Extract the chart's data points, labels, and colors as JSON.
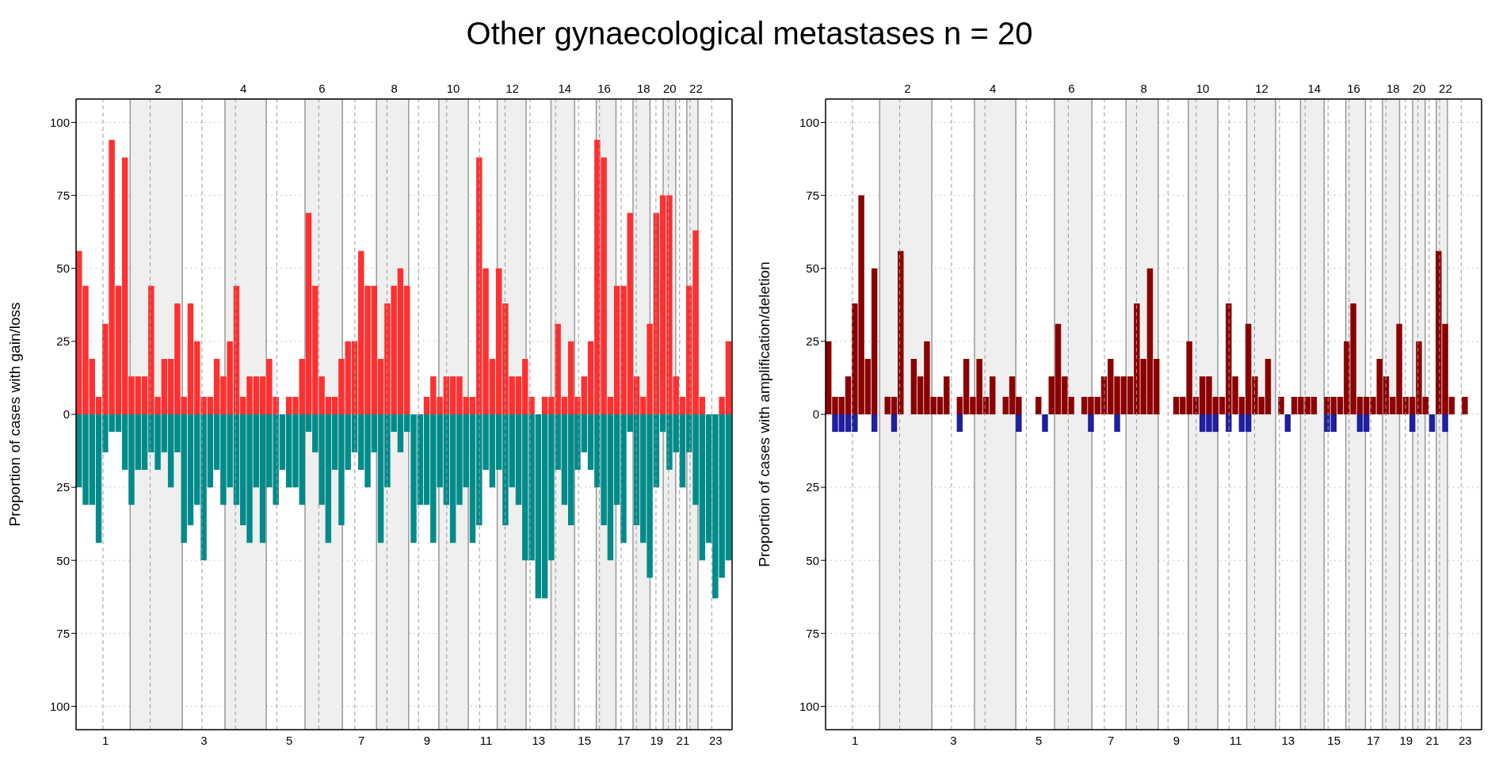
{
  "chart_data": [
    {
      "type": "bar",
      "title": "Other gynaecological metastases n = 20",
      "ylabel": "Proportion of cases with gain/loss",
      "stacked": true,
      "categories": [
        null,
        null,
        null,
        null,
        "1",
        null,
        null,
        null,
        null,
        null,
        null,
        null,
        "2",
        null,
        null,
        null,
        null,
        null,
        null,
        "3",
        null,
        null,
        null,
        null,
        null,
        "4",
        null,
        null,
        null,
        null,
        null,
        null,
        "5",
        null,
        null,
        null,
        null,
        "6",
        null,
        null,
        null,
        null,
        null,
        "7",
        null,
        null,
        null,
        null,
        "8",
        null,
        null,
        null,
        null,
        "9",
        null,
        null,
        null,
        "10",
        null,
        null,
        null,
        null,
        "11",
        null,
        null,
        null,
        "12",
        null,
        null,
        null,
        "13",
        null,
        null,
        null,
        "14",
        null,
        null,
        "15",
        null,
        null,
        "16",
        null,
        null,
        "17",
        null,
        null,
        "18",
        null,
        "19",
        null,
        "20",
        null,
        "21",
        null,
        "22",
        null,
        null,
        "23",
        null,
        null
      ],
      "series": [
        {
          "color": "#ff3030",
          "values": [
            56,
            44,
            19,
            6,
            31,
            94,
            44,
            88,
            13,
            13,
            13,
            44,
            6,
            19,
            19,
            38,
            6,
            38,
            25,
            6,
            6,
            19,
            13,
            25,
            44,
            6,
            13,
            13,
            13,
            19,
            6,
            0,
            6,
            6,
            19,
            69,
            44,
            13,
            6,
            6,
            19,
            25,
            25,
            56,
            44,
            44,
            19,
            38,
            44,
            50,
            44,
            0,
            0,
            6,
            13,
            6,
            13,
            13,
            13,
            6,
            6,
            88,
            50,
            19,
            50,
            38,
            13,
            13,
            19,
            6,
            0,
            6,
            6,
            31,
            6,
            25,
            6,
            13,
            25,
            94,
            88,
            6,
            44,
            44,
            69,
            13,
            6,
            31,
            69,
            75,
            75,
            13,
            6,
            44,
            63,
            6,
            0,
            0,
            6,
            25
          ]
        },
        {
          "color": "#008b8b",
          "values": [
            -25,
            -31,
            -31,
            -44,
            -13,
            -6,
            -6,
            -19,
            -31,
            -19,
            -19,
            -13,
            -19,
            -13,
            -25,
            -13,
            -44,
            -38,
            -31,
            -50,
            -25,
            -19,
            -31,
            -25,
            -31,
            -38,
            -44,
            -25,
            -44,
            -25,
            -31,
            -19,
            -25,
            -25,
            -31,
            -6,
            -13,
            -31,
            -44,
            -19,
            -38,
            -19,
            -13,
            -19,
            -25,
            -13,
            -44,
            -25,
            -6,
            -13,
            -6,
            -44,
            -31,
            -31,
            -44,
            -25,
            -31,
            -44,
            -31,
            -25,
            -44,
            -38,
            -19,
            -25,
            -19,
            -38,
            -25,
            -31,
            -50,
            -50,
            -63,
            -63,
            -50,
            -19,
            -31,
            -38,
            -19,
            -13,
            -19,
            -25,
            -38,
            -50,
            -31,
            -44,
            -6,
            -38,
            -44,
            -56,
            -25,
            -6,
            -19,
            -13,
            -25,
            -13,
            -31,
            -50,
            -44,
            -63,
            -56,
            -50
          ]
        }
      ],
      "ylim": [
        -108,
        108
      ],
      "yticks": [
        {
          "value": -100,
          "label": "100"
        },
        {
          "value": -75,
          "label": "75"
        },
        {
          "value": -50,
          "label": "50"
        },
        {
          "value": -25,
          "label": "25"
        },
        0,
        25,
        50,
        75,
        100
      ],
      "grid": "y"
    },
    {
      "type": "bar",
      "ylabel": "Proportion of cases with amplification/deletion",
      "stacked": true,
      "categories": [
        null,
        null,
        null,
        null,
        "1",
        null,
        null,
        null,
        null,
        null,
        null,
        null,
        "2",
        null,
        null,
        null,
        null,
        null,
        null,
        "3",
        null,
        null,
        null,
        null,
        null,
        "4",
        null,
        null,
        null,
        null,
        null,
        null,
        "5",
        null,
        null,
        null,
        null,
        "6",
        null,
        null,
        null,
        null,
        null,
        "7",
        null,
        null,
        null,
        null,
        "8",
        null,
        null,
        null,
        null,
        "9",
        null,
        null,
        null,
        "10",
        null,
        null,
        null,
        null,
        "11",
        null,
        null,
        null,
        "12",
        null,
        null,
        null,
        "13",
        null,
        null,
        null,
        "14",
        null,
        null,
        "15",
        null,
        null,
        "16",
        null,
        null,
        "17",
        null,
        null,
        "18",
        null,
        "19",
        null,
        "20",
        null,
        "21",
        null,
        "22",
        null,
        null,
        "23",
        null,
        null
      ],
      "series": [
        {
          "color": "#8b0000",
          "values": [
            25,
            6,
            6,
            13,
            38,
            75,
            19,
            50,
            0,
            6,
            6,
            56,
            0,
            19,
            13,
            25,
            6,
            6,
            13,
            0,
            6,
            19,
            6,
            19,
            6,
            13,
            0,
            6,
            13,
            6,
            0,
            0,
            6,
            0,
            13,
            31,
            13,
            6,
            0,
            6,
            6,
            6,
            13,
            19,
            13,
            13,
            13,
            38,
            19,
            50,
            19,
            0,
            0,
            6,
            6,
            25,
            6,
            13,
            13,
            6,
            6,
            38,
            13,
            6,
            31,
            13,
            6,
            19,
            0,
            6,
            0,
            6,
            6,
            6,
            6,
            0,
            6,
            6,
            6,
            25,
            38,
            6,
            6,
            6,
            19,
            13,
            6,
            31,
            6,
            6,
            25,
            6,
            0,
            56,
            31,
            6,
            0,
            6,
            0,
            0
          ]
        },
        {
          "color": "#1f1f9f",
          "values": [
            null,
            -6,
            -6,
            -6,
            -6,
            null,
            null,
            -6,
            null,
            null,
            -6,
            null,
            null,
            null,
            null,
            null,
            null,
            null,
            null,
            null,
            -6,
            null,
            null,
            null,
            null,
            null,
            null,
            null,
            null,
            -6,
            null,
            null,
            null,
            -6,
            null,
            null,
            null,
            null,
            null,
            null,
            -6,
            null,
            null,
            null,
            -6,
            null,
            null,
            null,
            null,
            null,
            null,
            null,
            null,
            null,
            null,
            null,
            null,
            -6,
            -6,
            -6,
            null,
            -6,
            null,
            -6,
            -6,
            null,
            null,
            null,
            null,
            null,
            -6,
            null,
            null,
            null,
            null,
            null,
            -6,
            -6,
            null,
            null,
            null,
            -6,
            -6,
            null,
            null,
            null,
            null,
            null,
            null,
            -6,
            null,
            null,
            -6,
            null,
            -6,
            null,
            null,
            null,
            null,
            null
          ]
        }
      ],
      "ylim": [
        -108,
        108
      ],
      "yticks": [
        {
          "value": -100,
          "label": "100"
        },
        {
          "value": -75,
          "label": "75"
        },
        {
          "value": -50,
          "label": "50"
        },
        {
          "value": -25,
          "label": "25"
        },
        0,
        25,
        50,
        75,
        100
      ],
      "grid": "y"
    }
  ]
}
